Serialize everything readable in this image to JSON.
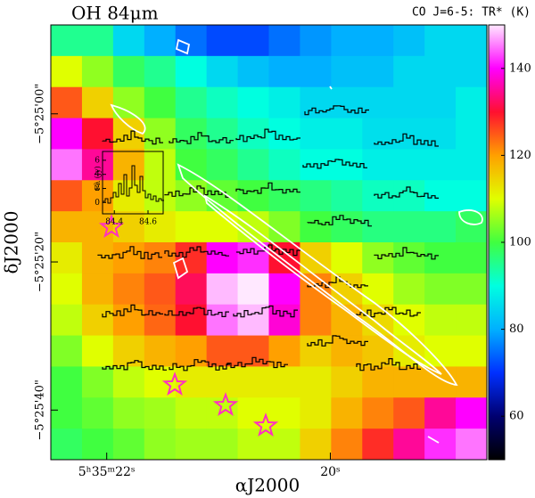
{
  "chart_data": {
    "type": "heatmap",
    "title": "OH 84μm",
    "colorbar_label": "CO J=6-5: TR* (K)",
    "xlabel": "αJ2000",
    "ylabel": "δJ2000",
    "xlim": [
      22.5,
      18.6
    ],
    "xticks": [
      {
        "value": 22,
        "label": "5ʰ35ᵐ22ˢ"
      },
      {
        "value": 20,
        "label": "20ˢ"
      }
    ],
    "ylim": [
      -46.7,
      12
    ],
    "yticks": [
      {
        "value": 0,
        "label": "−5°25'00\""
      },
      {
        "value": -20,
        "label": "−5°25'20\""
      },
      {
        "value": -40,
        "label": "−5°25'40\""
      }
    ],
    "clim": [
      50,
      150
    ],
    "cticks": [
      60,
      80,
      100,
      120,
      140
    ],
    "colormap": [
      "#000000",
      "#000070",
      "#0030ff",
      "#00b0ff",
      "#00ffe0",
      "#40ff40",
      "#e0ff00",
      "#ffa000",
      "#ff1030",
      "#ff00ff",
      "#ffe8ff"
    ],
    "z": [
      [
        95,
        95,
        85,
        80,
        75,
        72,
        72,
        75,
        78,
        80,
        80,
        82,
        85,
        85
      ],
      [
        110,
        105,
        98,
        95,
        90,
        85,
        82,
        80,
        80,
        82,
        82,
        85,
        85,
        85
      ],
      [
        125,
        115,
        105,
        100,
        95,
        92,
        90,
        88,
        85,
        85,
        85,
        85,
        85,
        88
      ],
      [
        140,
        130,
        115,
        105,
        98,
        95,
        92,
        90,
        88,
        88,
        86,
        86,
        86,
        88
      ],
      [
        145,
        135,
        118,
        108,
        100,
        98,
        95,
        92,
        90,
        90,
        88,
        88,
        88,
        88
      ],
      [
        125,
        120,
        112,
        108,
        105,
        102,
        100,
        98,
        96,
        94,
        92,
        92,
        90,
        90
      ],
      [
        118,
        118,
        115,
        112,
        110,
        110,
        108,
        104,
        100,
        98,
        96,
        96,
        96,
        98
      ],
      [
        112,
        118,
        120,
        122,
        128,
        140,
        142,
        130,
        115,
        110,
        105,
        102,
        100,
        100
      ],
      [
        110,
        118,
        122,
        125,
        132,
        148,
        150,
        140,
        122,
        115,
        110,
        106,
        104,
        104
      ],
      [
        108,
        115,
        120,
        124,
        130,
        145,
        148,
        138,
        122,
        118,
        114,
        110,
        108,
        108
      ],
      [
        104,
        110,
        115,
        118,
        120,
        125,
        125,
        120,
        115,
        118,
        116,
        112,
        110,
        110
      ],
      [
        100,
        104,
        108,
        110,
        112,
        112,
        112,
        112,
        112,
        115,
        118,
        118,
        118,
        118
      ],
      [
        100,
        102,
        105,
        106,
        108,
        108,
        110,
        110,
        112,
        118,
        122,
        125,
        135,
        140
      ],
      [
        98,
        100,
        102,
        105,
        106,
        106,
        108,
        108,
        115,
        122,
        128,
        135,
        142,
        145
      ]
    ],
    "inset": {
      "ylabel": "Fλ (Jy)",
      "ylim": [
        -1.6,
        7.25
      ],
      "yticks": [
        0,
        2,
        4,
        6
      ],
      "xlim": [
        84.33,
        84.69
      ],
      "xticks": [
        84.4,
        84.6
      ]
    }
  }
}
